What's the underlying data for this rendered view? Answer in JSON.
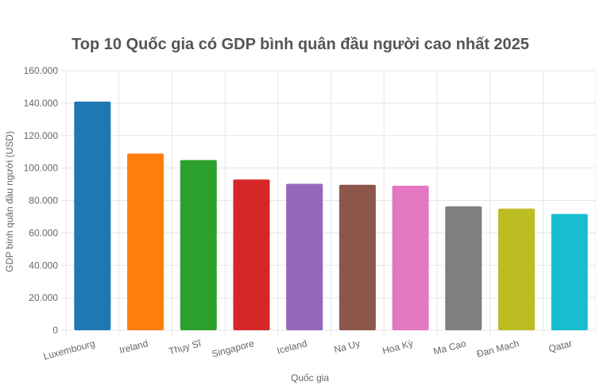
{
  "chart_data": {
    "type": "bar",
    "title": "Top 10 Quốc gia có GDP bình quân đầu người cao nhất 2025",
    "xlabel": "Quốc gia",
    "ylabel": "GDP bình quân đầu người (USD)",
    "categories": [
      "Luxembourg",
      "Ireland",
      "Thụy Sĩ",
      "Singapore",
      "Iceland",
      "Na Uy",
      "Hoa Kỳ",
      "Ma Cao",
      "Đan Mạch",
      "Qatar"
    ],
    "values": [
      140941,
      108919,
      104896,
      92932,
      90284,
      89694,
      89105,
      76314,
      74969,
      71653
    ],
    "colors": [
      "#1f77b4",
      "#ff7f0e",
      "#2ca02c",
      "#d62728",
      "#9467bd",
      "#8c564b",
      "#e377c2",
      "#7f7f7f",
      "#bcbd22",
      "#17becf"
    ],
    "ylim": [
      0,
      160000
    ],
    "yticks": [
      0,
      20000,
      40000,
      60000,
      80000,
      100000,
      120000,
      140000,
      160000
    ],
    "ytick_labels": [
      "0",
      "20.000",
      "40.000",
      "60.000",
      "80.000",
      "100.000",
      "120.000",
      "140.000",
      "160.000"
    ],
    "grid": true,
    "legend": "none"
  }
}
